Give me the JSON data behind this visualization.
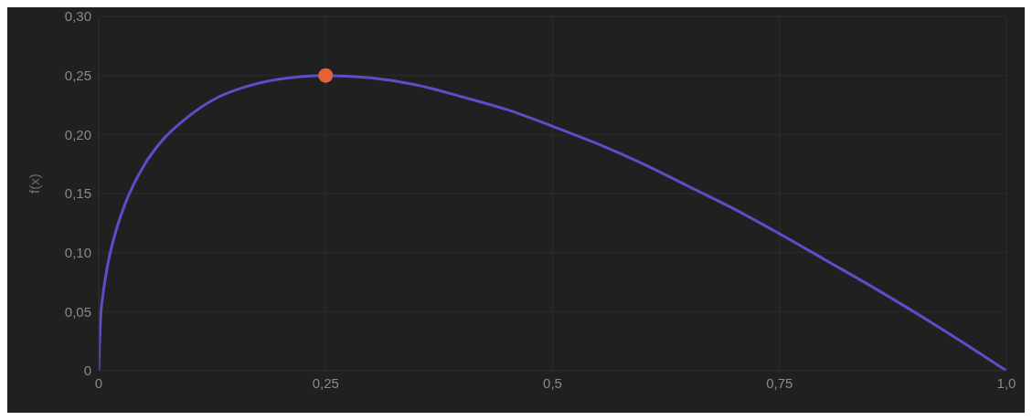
{
  "chart_data": {
    "type": "line",
    "ylabel": "f(x)",
    "xlim": [
      0,
      1
    ],
    "ylim": [
      0,
      0.3
    ],
    "xticks": [
      0,
      {
        "value": 0.25,
        "label": "0,25"
      },
      {
        "value": 0.5,
        "label": "0,5"
      },
      {
        "value": 0.75,
        "label": "0,75"
      },
      {
        "value": 1,
        "label": "1,0"
      }
    ],
    "yticks": [
      0,
      {
        "value": 0.05,
        "label": "0,05"
      },
      {
        "value": 0.1,
        "label": "0,10"
      },
      {
        "value": 0.15,
        "label": "0,15"
      },
      {
        "value": 0.2,
        "label": "0,20"
      },
      {
        "value": 0.25,
        "label": "0,25"
      },
      {
        "value": 0.3,
        "label": "0,30"
      }
    ],
    "grid": true,
    "series": [
      {
        "color": "#5b4fc9",
        "marker": "none",
        "line_style": "solid",
        "x": [
          0,
          0.002,
          0.005,
          0.01,
          0.02,
          0.03,
          0.05,
          0.07,
          0.1,
          0.13,
          0.16,
          0.2,
          0.25,
          0.3,
          0.35,
          0.4,
          0.45,
          0.5,
          0.55,
          0.6,
          0.65,
          0.7,
          0.75,
          0.8,
          0.85,
          0.9,
          0.95,
          1.0
        ],
        "values": [
          0,
          0.043,
          0.066,
          0.09,
          0.121,
          0.143,
          0.174,
          0.195,
          0.216,
          0.231,
          0.24,
          0.247,
          0.25,
          0.248,
          0.242,
          0.232,
          0.221,
          0.207,
          0.192,
          0.175,
          0.156,
          0.137,
          0.116,
          0.094,
          0.072,
          0.049,
          0.025,
          0
        ]
      },
      {
        "type": "scatter",
        "color": "#e0633a",
        "marker": "circle",
        "x": [
          0.25
        ],
        "values": [
          0.25
        ]
      }
    ]
  }
}
